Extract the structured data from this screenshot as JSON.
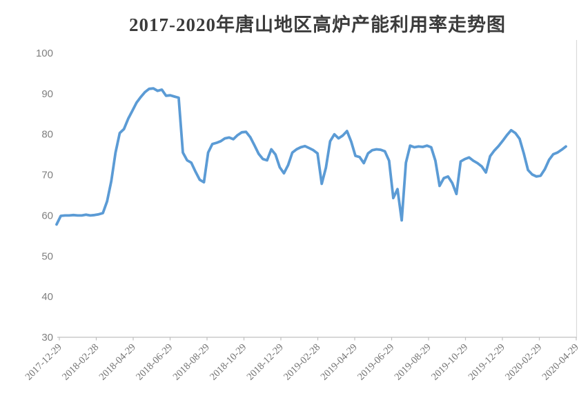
{
  "chart_data": {
    "type": "line",
    "title": "2017-2020年唐山地区高炉产能利用率走势图",
    "x_labels": [
      "2017-12-29",
      "2018-02-28",
      "2018-04-29",
      "2018-06-29",
      "2018-08-29",
      "2018-10-29",
      "2018-12-29",
      "2019-02-28",
      "2019-04-29",
      "2019-06-29",
      "2019-08-29",
      "2019-10-29",
      "2019-12-29",
      "2020-02-29",
      "2020-04-29"
    ],
    "y_ticks": [
      30,
      40,
      50,
      60,
      70,
      80,
      90,
      100
    ],
    "ylim": [
      30,
      100
    ],
    "grid": "off",
    "legend": "none",
    "line_color": "#5B9BD5",
    "axis_color": "#BFBFBF",
    "border_color": "#D9D9D9",
    "label_color": "#7F7F7F",
    "values": [
      57.8,
      59.9,
      60.0,
      60.0,
      60.1,
      60.0,
      60.0,
      60.2,
      60.0,
      60.1,
      60.3,
      60.6,
      63.5,
      68.5,
      75.5,
      80.3,
      81.3,
      83.8,
      85.8,
      87.8,
      89.2,
      90.4,
      91.2,
      91.3,
      90.7,
      91.0,
      89.5,
      89.6,
      89.3,
      89.0,
      75.5,
      73.6,
      73.0,
      70.8,
      68.8,
      68.2,
      75.5,
      77.6,
      77.9,
      78.3,
      79.0,
      79.2,
      78.8,
      79.8,
      80.5,
      80.6,
      79.3,
      77.3,
      75.2,
      73.9,
      73.6,
      76.3,
      75.0,
      71.9,
      70.4,
      72.4,
      75.5,
      76.3,
      76.8,
      77.1,
      76.6,
      76.1,
      75.3,
      67.8,
      71.8,
      78.3,
      80.0,
      79.0,
      79.7,
      80.8,
      78.2,
      74.7,
      74.4,
      72.9,
      75.3,
      76.1,
      76.3,
      76.2,
      75.8,
      73.5,
      64.3,
      66.5,
      58.8,
      73.0,
      77.2,
      76.8,
      77.0,
      76.9,
      77.2,
      76.8,
      73.5,
      67.3,
      69.2,
      69.6,
      68.0,
      65.3,
      73.3,
      73.9,
      74.3,
      73.5,
      72.9,
      72.1,
      70.6,
      74.6,
      76.0,
      77.1,
      78.4,
      79.8,
      81.0,
      80.3,
      78.9,
      75.3,
      71.2,
      70.1,
      69.6,
      69.8,
      71.4,
      73.7,
      75.1,
      75.5,
      76.2,
      77.0
    ]
  }
}
